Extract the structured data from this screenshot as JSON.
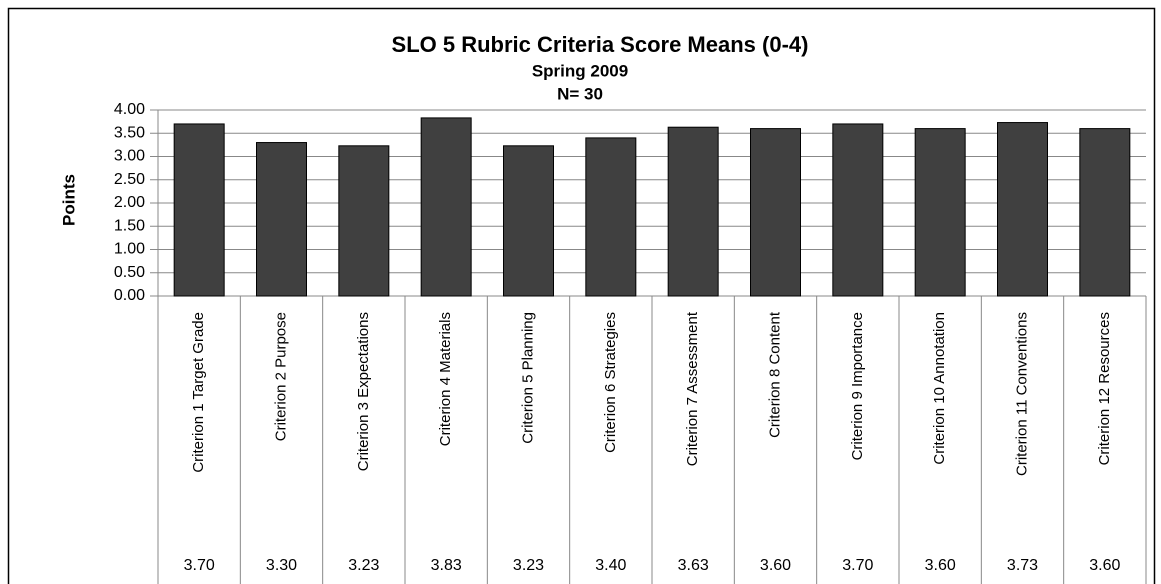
{
  "chart_data": {
    "type": "bar",
    "title": "SLO 5 Rubric Criteria Score Means (0-4)",
    "subtitle": "Spring 2009",
    "annotation": "N= 30",
    "y_label": "Points",
    "categories": [
      "Criterion 1 Target Grade",
      "Criterion 2 Purpose",
      "Criterion 3 Expectations",
      "Criterion 4 Materials",
      "Criterion 5 Planning",
      "Criterion 6 Strategies",
      "Criterion 7 Assessment",
      "Criterion 8 Content",
      "Criterion 9 Importance",
      "Criterion 10 Annotation",
      "Criterion 11 Conventions",
      "Criterion 12 Resources"
    ],
    "values": [
      3.7,
      3.3,
      3.23,
      3.83,
      3.23,
      3.4,
      3.63,
      3.6,
      3.7,
      3.6,
      3.73,
      3.6
    ],
    "value_labels": [
      "3.70",
      "3.30",
      "3.23",
      "3.83",
      "3.23",
      "3.40",
      "3.63",
      "3.60",
      "3.70",
      "3.60",
      "3.73",
      "3.60"
    ],
    "color": "#404040",
    "ylim": [
      0,
      4
    ],
    "yticks": [
      {
        "value": 0,
        "label": "0.00"
      },
      {
        "value": 0.5,
        "label": "0.50"
      },
      {
        "value": 1,
        "label": "1.00"
      },
      {
        "value": 1.5,
        "label": "1.50"
      },
      {
        "value": 2,
        "label": "2.00"
      },
      {
        "value": 2.5,
        "label": "2.50"
      },
      {
        "value": 3,
        "label": "3.00"
      },
      {
        "value": 3.5,
        "label": "3.50"
      },
      {
        "value": 4,
        "label": "4.00"
      }
    ],
    "grid": true
  }
}
